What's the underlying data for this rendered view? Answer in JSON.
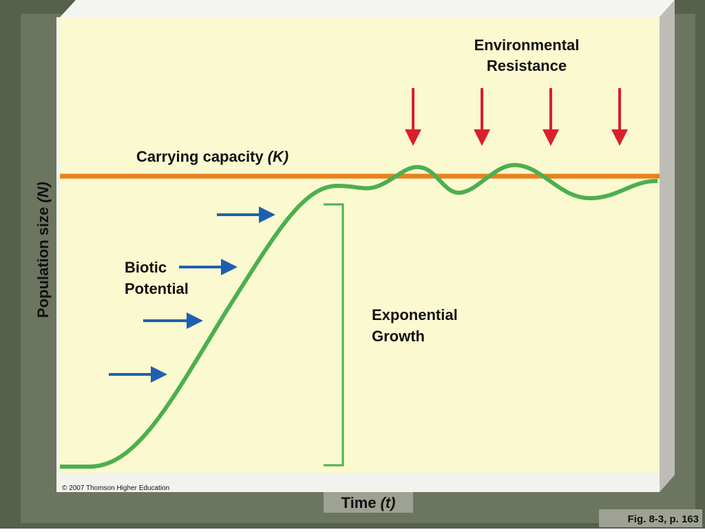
{
  "labels": {
    "environmental_resistance": [
      "Environmental",
      "Resistance"
    ],
    "carrying_capacity": {
      "text": "Carrying capacity",
      "symbol": "(K)"
    },
    "biotic_potential": [
      "Biotic",
      "Potential"
    ],
    "exponential_growth": [
      "Exponential",
      "Growth"
    ]
  },
  "axes": {
    "y": {
      "text": "Population size",
      "symbol": "(N)"
    },
    "x": {
      "text": "Time",
      "symbol": "(t)"
    }
  },
  "credit": "© 2007 Thomson Higher Education",
  "figure_ref": "Fig. 8-3, p. 163"
}
